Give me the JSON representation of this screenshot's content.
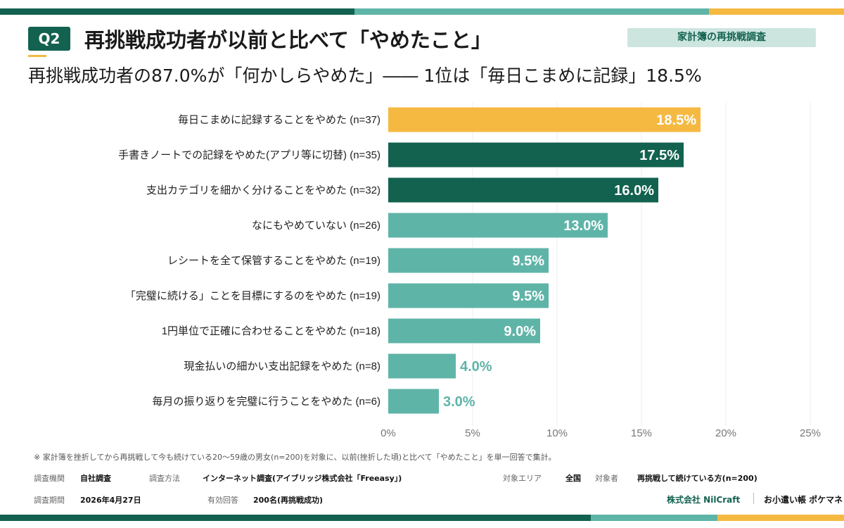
{
  "header": {
    "badge": "Q2",
    "title": "再挑戦成功者が以前と比べて「やめたこと」",
    "tag": "家計簿の再挑戦調査",
    "subtitle": "再挑戦成功者の87.0%が「何かしらやめた」―― 1位は「毎日こまめに記録」18.5%"
  },
  "colors": {
    "highlight": "#f5b942",
    "dark": "#12624f",
    "light": "#5fb4a8"
  },
  "chart_data": {
    "type": "bar",
    "orientation": "horizontal",
    "categories": [
      "毎日こまめに記録することをやめた (n=37)",
      "手書きノートでの記録をやめた(アプリ等に切替) (n=35)",
      "支出カテゴリを細かく分けることをやめた (n=32)",
      "なにもやめていない (n=26)",
      "レシートを全て保管することをやめた (n=19)",
      "「完璧に続ける」ことを目標にするのをやめた (n=19)",
      "1円単位で正確に合わせることをやめた (n=18)",
      "現金払いの細かい支出記録をやめた (n=8)",
      "毎月の振り返りを完璧に行うことをやめた (n=6)"
    ],
    "values": [
      18.5,
      17.5,
      16.0,
      13.0,
      9.5,
      9.5,
      9.0,
      4.0,
      3.0
    ],
    "value_labels": [
      "18.5%",
      "17.5%",
      "16.0%",
      "13.0%",
      "9.5%",
      "9.5%",
      "9.0%",
      "4.0%",
      "3.0%"
    ],
    "bar_colors": [
      "#f5b942",
      "#12624f",
      "#12624f",
      "#5fb4a8",
      "#5fb4a8",
      "#5fb4a8",
      "#5fb4a8",
      "#5fb4a8",
      "#5fb4a8"
    ],
    "xlim": [
      0,
      25
    ],
    "x_ticks": [
      "0%",
      "5%",
      "10%",
      "15%",
      "20%",
      "25%"
    ],
    "xlabel": "",
    "ylabel": "",
    "grid": true
  },
  "footer": {
    "note": "※ 家計簿を挫折してから再挑戦して今も続けている20〜59歳の男女(n=200)を対象に、以前(挫折した頃)と比べて「やめたこと」を単一回答で集計。",
    "org_label": "調査機関",
    "org_value": "自社調査",
    "method_label": "調査方法",
    "method_value": "インターネット調査(アイブリッジ株式会社「Freeasy」)",
    "area_label": "対象エリア",
    "area_value": "全国",
    "target_label": "対象者",
    "target_value": "再挑戦して続けている方(n=200)",
    "period_label": "調査期間",
    "period_value": "2026年4月27日",
    "valid_label": "有効回答",
    "valid_value": "200名(再挑戦成功)",
    "brand_company": "株式会社 NilCraft",
    "brand_app": "お小遣い帳 ポケマネ"
  }
}
